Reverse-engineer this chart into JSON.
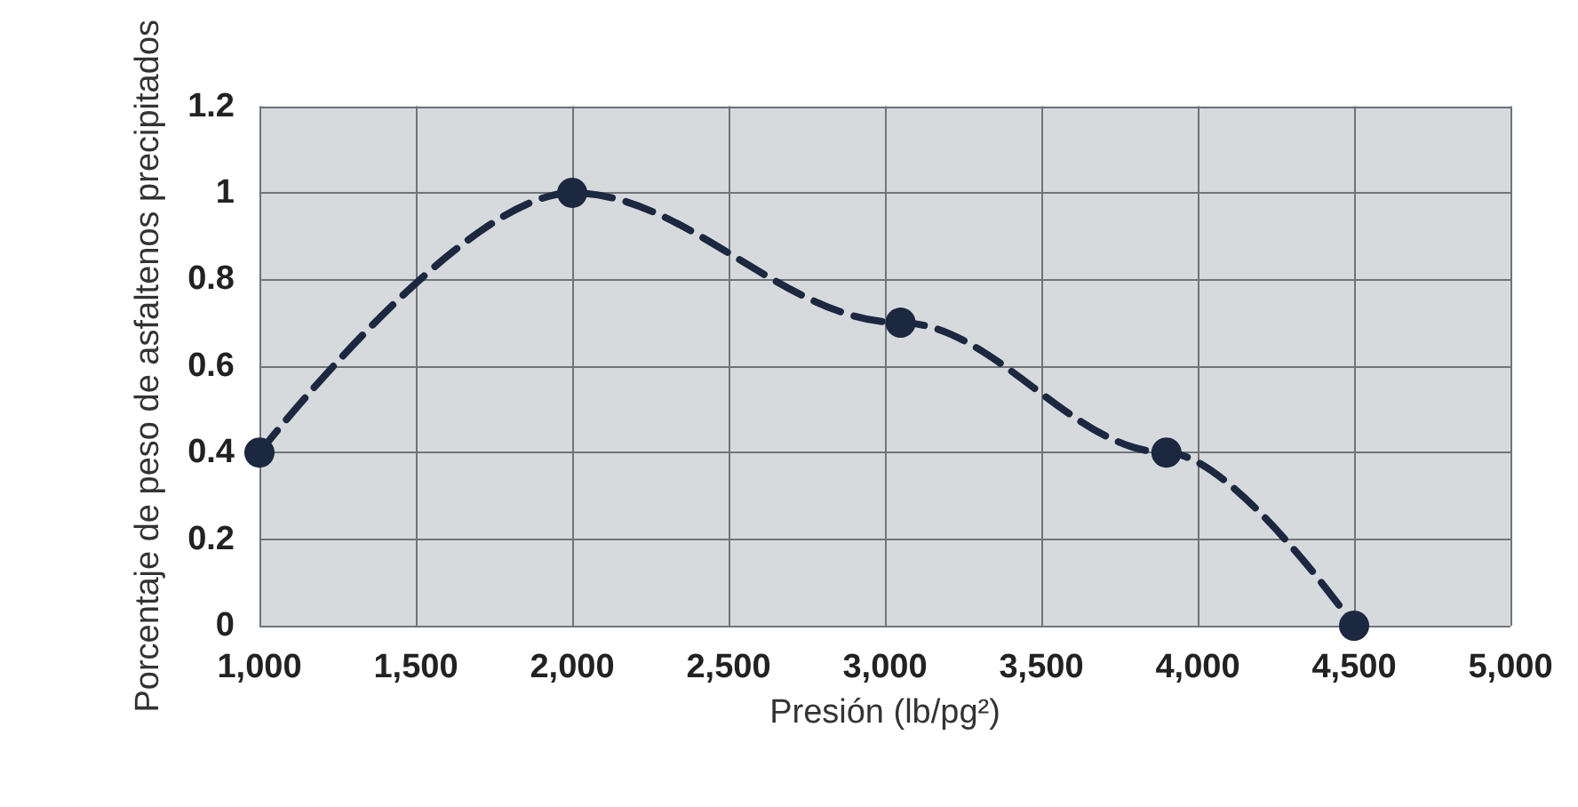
{
  "chart_data": {
    "type": "line",
    "xlabel": "Presión (lb/pg²)",
    "ylabel": "Porcentaje de peso de asfaltenos precipitados",
    "x": [
      1000,
      2000,
      3050,
      3900,
      4500
    ],
    "series": [
      {
        "color": "#1c2740",
        "values": [
          0.4,
          1.0,
          0.7,
          0.4,
          0
        ]
      }
    ],
    "xlim": [
      1000,
      5000
    ],
    "xticks": [
      {
        "value": 1000,
        "label": "1,000"
      },
      {
        "value": 1500,
        "label": "1,500"
      },
      {
        "value": 2000,
        "label": "2,000"
      },
      {
        "value": 2500,
        "label": "2,500"
      },
      {
        "value": 3000,
        "label": "3,000"
      },
      {
        "value": 3500,
        "label": "3,500"
      },
      {
        "value": 4000,
        "label": "4,000"
      },
      {
        "value": 4500,
        "label": "4,500"
      },
      {
        "value": 5000,
        "label": "5,000"
      }
    ],
    "ylim": [
      0,
      1.2
    ],
    "yticks": [
      0,
      0.2,
      0.4,
      0.6,
      0.8,
      1,
      1.2
    ],
    "grid": true,
    "marker": "circle",
    "line_style": "dashed"
  }
}
